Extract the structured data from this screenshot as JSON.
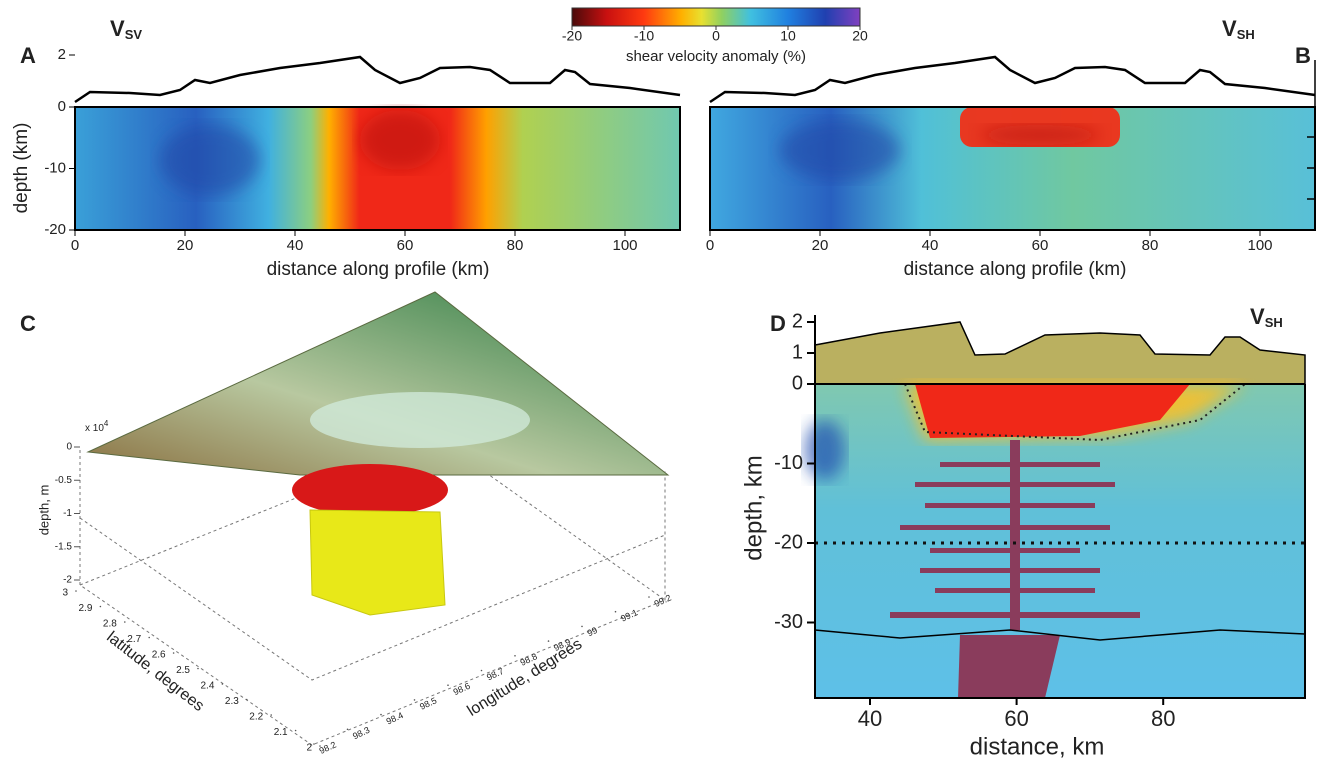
{
  "colorbar": {
    "label": "shear velocity anomaly (%)",
    "ticks": [
      -20,
      -10,
      0,
      10,
      20
    ]
  },
  "panel_a": {
    "letter": "A",
    "title": "V",
    "title_sub": "SV",
    "xlabel": "distance along profile (km)",
    "ylabel": "depth (km)",
    "xticks": [
      0,
      20,
      40,
      60,
      80,
      100
    ],
    "yticks": [
      0,
      -10,
      -20
    ],
    "elev_ticks": [
      0,
      2
    ]
  },
  "panel_b": {
    "letter": "B",
    "title": "V",
    "title_sub": "SH",
    "xlabel": "distance along profile (km)",
    "xticks": [
      0,
      20,
      40,
      60,
      80,
      100
    ]
  },
  "panel_c": {
    "letter": "C",
    "zlabel": "depth, m",
    "scale": "x 10",
    "scale_exp": "4",
    "zticks": [
      0,
      -0.5,
      -1,
      -1.5,
      -2
    ],
    "latlabel": "latitude, degrees",
    "latticks": [
      3,
      2.9,
      2.8,
      2.7,
      2.6,
      2.5,
      2.4,
      2.3,
      2.2,
      2.1,
      2
    ],
    "lonlabel": "longitude, degrees",
    "lonticks": [
      98.2,
      98.3,
      98.4,
      98.5,
      98.6,
      98.7,
      98.8,
      98.9,
      99,
      99.1,
      99.2
    ]
  },
  "panel_d": {
    "letter": "D",
    "title": "V",
    "title_sub": "SH",
    "xlabel": "distance, km",
    "ylabel": "depth, km",
    "xticks": [
      40,
      60,
      80
    ],
    "yticks": [
      2,
      1,
      0,
      -10,
      -20,
      -30
    ]
  }
}
